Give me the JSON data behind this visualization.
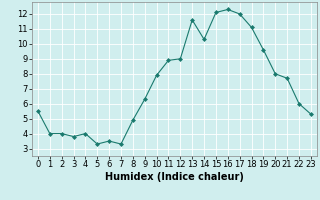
{
  "x": [
    0,
    1,
    2,
    3,
    4,
    5,
    6,
    7,
    8,
    9,
    10,
    11,
    12,
    13,
    14,
    15,
    16,
    17,
    18,
    19,
    20,
    21,
    22,
    23
  ],
  "y": [
    5.5,
    4.0,
    4.0,
    3.8,
    4.0,
    3.3,
    3.5,
    3.3,
    4.9,
    6.3,
    7.9,
    8.9,
    9.0,
    11.6,
    10.3,
    12.1,
    12.3,
    12.0,
    11.1,
    9.6,
    8.0,
    7.7,
    6.0,
    5.3
  ],
  "line_color": "#1a7a6e",
  "marker": "D",
  "marker_size": 2,
  "bg_color": "#d0eeee",
  "grid_color": "#ffffff",
  "xlabel": "Humidex (Indice chaleur)",
  "xlim": [
    -0.5,
    23.5
  ],
  "ylim": [
    2.5,
    12.8
  ],
  "yticks": [
    3,
    4,
    5,
    6,
    7,
    8,
    9,
    10,
    11,
    12
  ],
  "xticks": [
    0,
    1,
    2,
    3,
    4,
    5,
    6,
    7,
    8,
    9,
    10,
    11,
    12,
    13,
    14,
    15,
    16,
    17,
    18,
    19,
    20,
    21,
    22,
    23
  ],
  "tick_fontsize": 6,
  "label_fontsize": 7,
  "linewidth": 0.8
}
